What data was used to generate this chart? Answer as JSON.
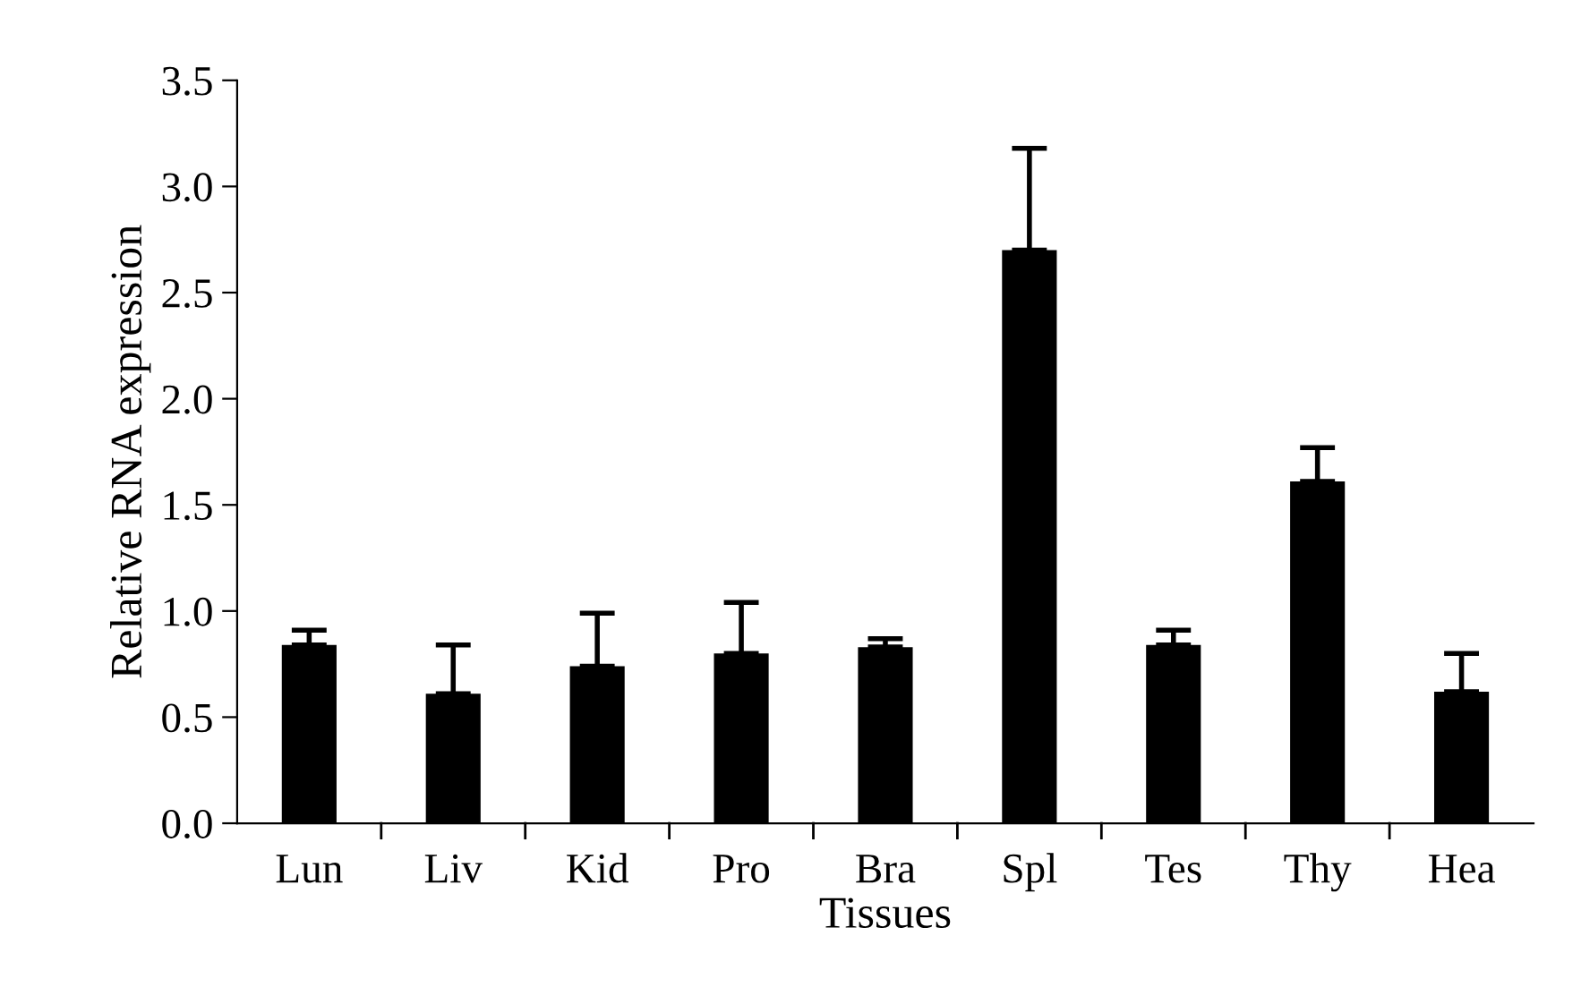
{
  "chart_data": {
    "type": "bar",
    "xlabel": "Tissues",
    "ylabel": "Relative RNA expression",
    "categories": [
      "Lun",
      "Liv",
      "Kid",
      "Pro",
      "Bra",
      "Spl",
      "Tes",
      "Thy",
      "Hea"
    ],
    "values": [
      0.84,
      0.61,
      0.74,
      0.8,
      0.83,
      2.7,
      0.84,
      1.61,
      0.62
    ],
    "errors": [
      0.07,
      0.23,
      0.25,
      0.24,
      0.04,
      0.48,
      0.07,
      0.16,
      0.18
    ],
    "color": "#000000",
    "ylim": [
      0,
      3.5
    ],
    "yticks": [
      {
        "value": 0,
        "label": "0.0"
      },
      {
        "value": 0.5,
        "label": "0.5"
      },
      {
        "value": 1,
        "label": "1.0"
      },
      {
        "value": 1.5,
        "label": "1.5"
      },
      {
        "value": 2,
        "label": "2.0"
      },
      {
        "value": 2.5,
        "label": "2.5"
      },
      {
        "value": 3,
        "label": "3.0"
      },
      {
        "value": 3.5,
        "label": "3.5"
      }
    ],
    "grid": false
  }
}
